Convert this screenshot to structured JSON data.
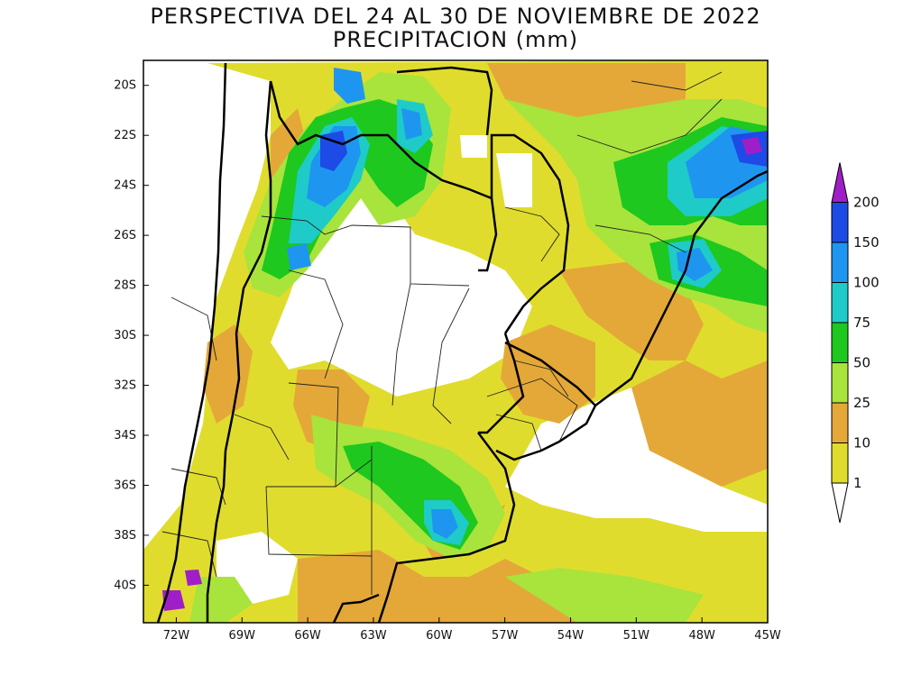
{
  "title": {
    "line1": "PERSPECTIVA DEL 24 AL 30 DE NOVIEMBRE DE 2022",
    "line2": "PRECIPITACION (mm)"
  },
  "map": {
    "lat_range": [
      -41.5,
      -19
    ],
    "lon_range": [
      -73.5,
      -45
    ],
    "lat_ticks": [
      "20S",
      "22S",
      "24S",
      "26S",
      "28S",
      "30S",
      "32S",
      "34S",
      "36S",
      "38S",
      "40S"
    ],
    "lon_ticks": [
      "72W",
      "69W",
      "66W",
      "63W",
      "60W",
      "57W",
      "54W",
      "51W",
      "48W",
      "45W"
    ]
  },
  "colorbar": {
    "labels": [
      "1",
      "10",
      "25",
      "50",
      "75",
      "100",
      "150",
      "200"
    ],
    "colors": [
      "#e0dc2e",
      "#e4a838",
      "#a8e43c",
      "#1ec81e",
      "#1ecbc8",
      "#1e96f0",
      "#1e4ae6",
      "#a01ec8"
    ]
  },
  "palette": {
    "p1": "#e0dc2e",
    "p10": "#e4a838",
    "p25": "#a8e43c",
    "p50": "#1ec81e",
    "p75": "#1ecbc8",
    "p100": "#1e96f0",
    "p150": "#1e4ae6",
    "p200": "#a01ec8"
  }
}
